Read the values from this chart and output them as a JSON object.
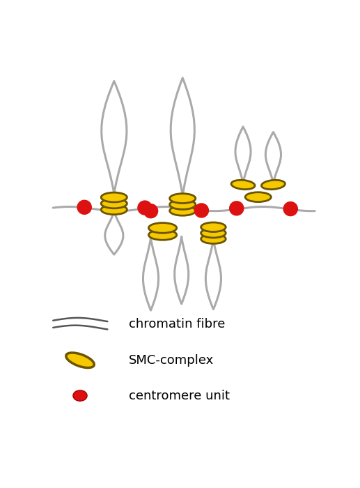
{
  "bg_color": "#ffffff",
  "fiber_color": "#aaaaaa",
  "fiber_lw": 2.2,
  "fiber_edge_color": "#888888",
  "smc_outer_color": "#f5c800",
  "smc_inner_color": "#6b5500",
  "centromere_color": "#dd1111",
  "centromere_r": 0.13,
  "legend_texts": [
    "chromatin fibre",
    "SMC-complex",
    "centromere unit"
  ],
  "legend_fontsize": 13
}
